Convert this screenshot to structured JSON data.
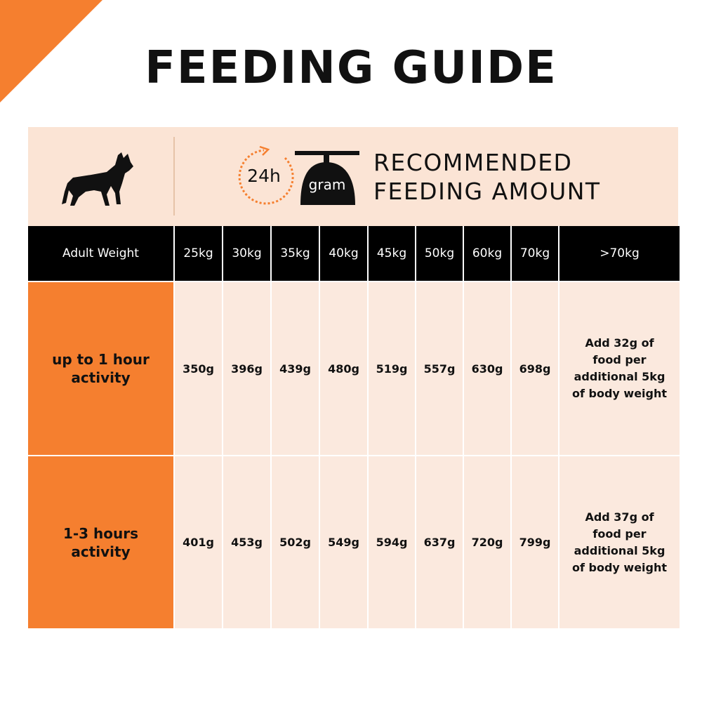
{
  "title": "FEEDING GUIDE",
  "banner": {
    "clock_label": "24h",
    "scale_label": "gram",
    "heading_lines": [
      "RECOMMENDED",
      "FEEDING AMOUNT"
    ]
  },
  "table": {
    "header": [
      "Adult Weight",
      "25kg",
      "30kg",
      "35kg",
      "40kg",
      "45kg",
      "50kg",
      "60kg",
      "70kg",
      ">70kg"
    ],
    "rows": [
      [
        "up to 1 hour activity",
        "350g",
        "396g",
        "439g",
        "480g",
        "519g",
        "557g",
        "630g",
        "698g",
        "Add 32g of food per additional 5kg of body weight"
      ],
      [
        "1-3 hours activity",
        "401g",
        "453g",
        "502g",
        "549g",
        "594g",
        "637g",
        "720g",
        "799g",
        "Add 37g of food per additional 5kg of body weight"
      ]
    ]
  }
}
